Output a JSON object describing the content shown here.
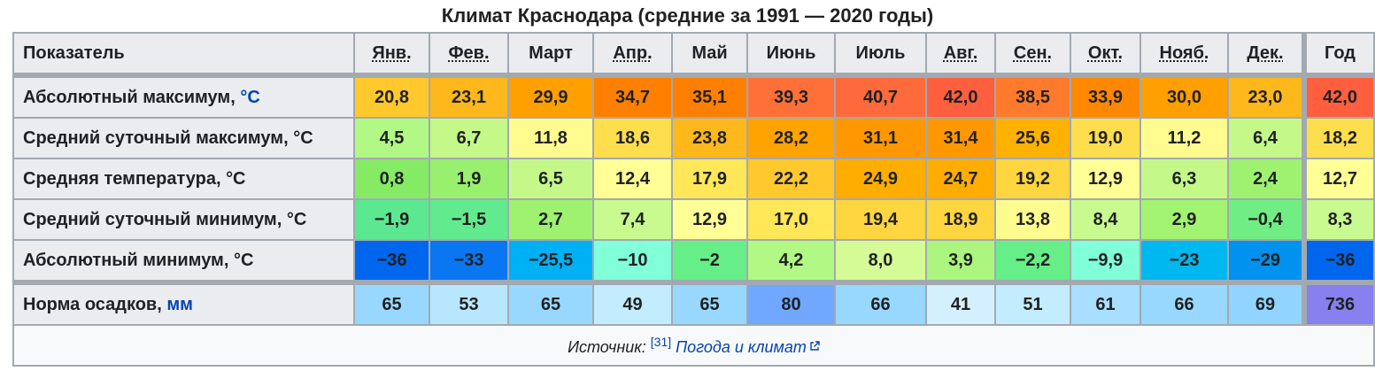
{
  "caption": "Климат Краснодара (средние за 1991 — 2020 годы)",
  "header": {
    "label": "Показатель",
    "months": [
      {
        "label": "Янв.",
        "abbr": true
      },
      {
        "label": "Фев.",
        "abbr": true
      },
      {
        "label": "Март",
        "abbr": false
      },
      {
        "label": "Апр.",
        "abbr": true
      },
      {
        "label": "Май",
        "abbr": false
      },
      {
        "label": "Июнь",
        "abbr": false
      },
      {
        "label": "Июль",
        "abbr": false
      },
      {
        "label": "Авг.",
        "abbr": true
      },
      {
        "label": "Сен.",
        "abbr": true
      },
      {
        "label": "Окт.",
        "abbr": true
      },
      {
        "label": "Нояб.",
        "abbr": true
      },
      {
        "label": "Дек.",
        "abbr": true
      }
    ],
    "year": "Год"
  },
  "rows": [
    {
      "label": "Абсолютный максимум,",
      "unit": "°C",
      "unit_link": true,
      "values": [
        "20,8",
        "23,1",
        "29,9",
        "34,7",
        "35,1",
        "39,3",
        "40,7",
        "42,0",
        "38,5",
        "33,9",
        "30,0",
        "23,0"
      ],
      "colors": [
        "#ffc92d",
        "#ffb81b",
        "#ff9f00",
        "#ff8000",
        "#ff8000",
        "#ff7038",
        "#ff6a3c",
        "#ff5f3f",
        "#ff7a2c",
        "#ff8800",
        "#ff9f00",
        "#ffb81b"
      ],
      "year": "42,0",
      "year_color": "#ff5f3f"
    },
    {
      "label": "Средний суточный максимум,",
      "unit": "°C",
      "unit_link": false,
      "values": [
        "4,5",
        "6,7",
        "11,8",
        "18,6",
        "23,8",
        "28,2",
        "31,1",
        "31,4",
        "25,6",
        "19,0",
        "11,2",
        "6,4"
      ],
      "colors": [
        "#b1f884",
        "#c4f98a",
        "#fffc8f",
        "#ffde4e",
        "#ffb81b",
        "#ffa300",
        "#ff9800",
        "#ff9800",
        "#ffb200",
        "#ffde4e",
        "#fffc8f",
        "#c4f98a"
      ],
      "year": "18,2",
      "year_color": "#ffde4e"
    },
    {
      "label": "Средняя температура,",
      "unit": "°C",
      "unit_link": false,
      "values": [
        "0,8",
        "1,9",
        "6,5",
        "12,4",
        "17,9",
        "22,2",
        "24,9",
        "24,7",
        "19,2",
        "12,9",
        "6,3",
        "2,4"
      ],
      "colors": [
        "#85eb64",
        "#98f06e",
        "#c4f98a",
        "#ffff95",
        "#ffe758",
        "#ffc92d",
        "#ffad00",
        "#ffad00",
        "#ffd63f",
        "#ffff95",
        "#c4f98a",
        "#9ef270"
      ],
      "year": "12,7",
      "year_color": "#ffff95"
    },
    {
      "label": "Средний суточный минимум,",
      "unit": "°C",
      "unit_link": false,
      "values": [
        "−1,9",
        "−1,5",
        "2,7",
        "7,4",
        "12,9",
        "17,0",
        "19,4",
        "18,9",
        "13,8",
        "8,4",
        "2,9",
        "−0,4"
      ],
      "colors": [
        "#5ce890",
        "#62eb8e",
        "#9ef270",
        "#c9fa8f",
        "#ffff95",
        "#ffe758",
        "#ffd63f",
        "#ffd63f",
        "#fffc8f",
        "#c9fa8f",
        "#a2f372",
        "#70ee84"
      ],
      "year": "8,3",
      "year_color": "#c9fa8f"
    },
    {
      "label": "Абсолютный минимум,",
      "unit": "°C",
      "unit_link": false,
      "values": [
        "−36",
        "−33",
        "−25,5",
        "−10",
        "−2",
        "4,2",
        "8,0",
        "3,9",
        "−2,2",
        "−9,9",
        "−23",
        "−29"
      ],
      "colors": [
        "#0066ee",
        "#0a76f2",
        "#00b0f5",
        "#80ffd8",
        "#66ee88",
        "#b1f884",
        "#d4fb95",
        "#acf57e",
        "#66ee88",
        "#80ffd8",
        "#00b8f0",
        "#0092ee"
      ],
      "year": "−36",
      "year_color": "#0066ee"
    }
  ],
  "precip": {
    "label": "Норма осадков,",
    "unit": "мм",
    "values": [
      "65",
      "53",
      "65",
      "49",
      "65",
      "80",
      "66",
      "41",
      "51",
      "61",
      "66",
      "69"
    ],
    "colors": [
      "#98d8ff",
      "#b8e6ff",
      "#98d8ff",
      "#c4ecff",
      "#98d8ff",
      "#70a8ff",
      "#98d8ff",
      "#d4f0ff",
      "#c4ecff",
      "#a8deff",
      "#98d8ff",
      "#90d4ff"
    ],
    "year": "736",
    "year_color": "#8880ee"
  },
  "source": {
    "label": "Источник:",
    "ref": "[31]",
    "link": "Погода и климат"
  }
}
